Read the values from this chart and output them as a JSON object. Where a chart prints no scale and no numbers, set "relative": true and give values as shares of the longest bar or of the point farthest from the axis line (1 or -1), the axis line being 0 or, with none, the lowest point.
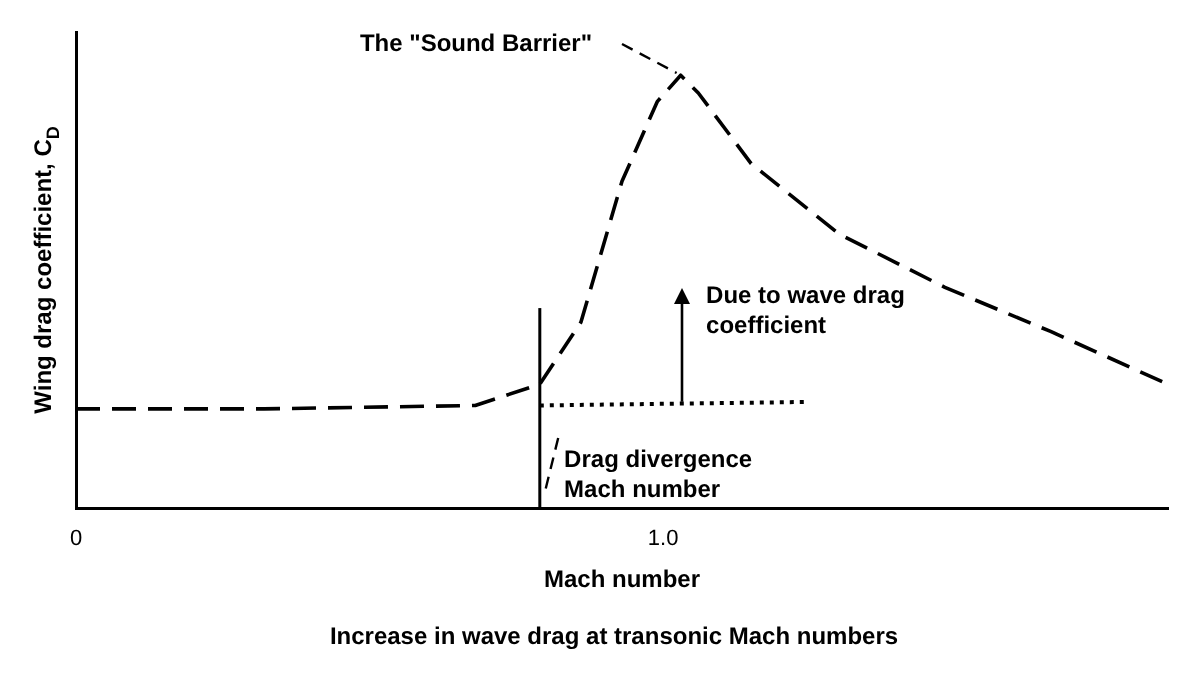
{
  "chart_data": {
    "type": "line",
    "title": "Increase in wave drag at transonic Mach numbers",
    "xlabel": "Mach number",
    "ylabel": "Wing drag coefficient, C$_{D}$",
    "relative": true,
    "xlim": [
      0,
      1.86
    ],
    "xticks": [
      0,
      {
        "value": 1,
        "label": "1.0"
      }
    ],
    "grid": false,
    "legend": false,
    "marker": "none",
    "series": [
      {
        "color": "#000000",
        "line_style": "dashed",
        "x": [
          0,
          0.32,
          0.68,
          0.79,
          0.86,
          0.93,
          0.99,
          1.03,
          1.06,
          1.15,
          1.3,
          1.48,
          1.66,
          1.86
        ],
        "values": [
          0.229,
          0.229,
          0.237,
          0.286,
          0.429,
          0.755,
          0.939,
          1,
          0.959,
          0.796,
          0.633,
          0.51,
          0.408,
          0.286
        ]
      },
      {
        "color": "#000000",
        "line_style": "dotted",
        "x": [
          0.79,
          1.24
        ],
        "values": [
          0.237,
          0.245
        ]
      }
    ],
    "ref_lines": [
      {
        "axis": "x",
        "value": 0.79,
        "color": "#000000",
        "line_style": "solid"
      }
    ],
    "annotations": [
      "The \"Sound Barrier\"",
      "Due to wave drag coefficient",
      "Drag divergence Mach number"
    ]
  }
}
